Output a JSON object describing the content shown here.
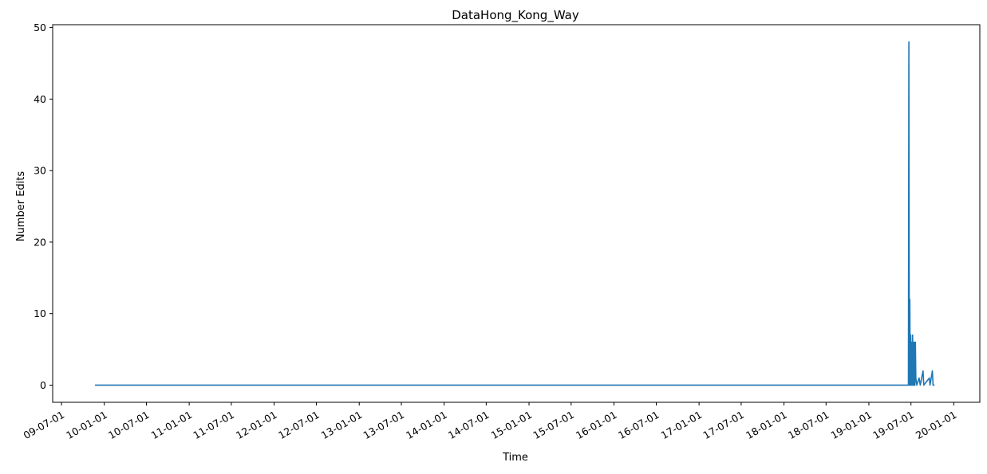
{
  "chart_data": {
    "type": "line",
    "title": "DataHong_Kong_Way",
    "xlabel": "Time",
    "ylabel": "Number Edits",
    "x_type": "date",
    "xlim": [
      "2009-05-24",
      "2020-04-22"
    ],
    "ylim": [
      -2.4,
      50.4
    ],
    "y_ticks": [
      0,
      10,
      20,
      30,
      40,
      50
    ],
    "x_ticks": [
      {
        "date": "2009-07-01",
        "label": "09-07-01"
      },
      {
        "date": "2010-01-01",
        "label": "10-01-01"
      },
      {
        "date": "2010-07-01",
        "label": "10-07-01"
      },
      {
        "date": "2011-01-01",
        "label": "11-01-01"
      },
      {
        "date": "2011-07-01",
        "label": "11-07-01"
      },
      {
        "date": "2012-01-01",
        "label": "12-01-01"
      },
      {
        "date": "2012-07-01",
        "label": "12-07-01"
      },
      {
        "date": "2013-01-01",
        "label": "13-01-01"
      },
      {
        "date": "2013-07-01",
        "label": "13-07-01"
      },
      {
        "date": "2014-01-01",
        "label": "14-01-01"
      },
      {
        "date": "2014-07-01",
        "label": "14-07-01"
      },
      {
        "date": "2015-01-01",
        "label": "15-01-01"
      },
      {
        "date": "2015-07-01",
        "label": "15-07-01"
      },
      {
        "date": "2016-01-01",
        "label": "16-01-01"
      },
      {
        "date": "2016-07-01",
        "label": "16-07-01"
      },
      {
        "date": "2017-01-01",
        "label": "17-01-01"
      },
      {
        "date": "2017-07-01",
        "label": "17-07-01"
      },
      {
        "date": "2018-01-01",
        "label": "18-01-01"
      },
      {
        "date": "2018-07-01",
        "label": "18-07-01"
      },
      {
        "date": "2019-01-01",
        "label": "19-01-01"
      },
      {
        "date": "2019-07-01",
        "label": "19-07-01"
      },
      {
        "date": "2020-01-01",
        "label": "20-01-01"
      }
    ],
    "grid": false,
    "series": [
      {
        "color": "#1f77b4",
        "points": [
          {
            "x": "2009-11-22",
            "y": 0
          },
          {
            "x": "2019-06-20",
            "y": 0
          },
          {
            "x": "2019-06-22",
            "y": 48
          },
          {
            "x": "2019-06-24",
            "y": 0
          },
          {
            "x": "2019-06-26",
            "y": 12
          },
          {
            "x": "2019-06-28",
            "y": 0
          },
          {
            "x": "2019-06-30",
            "y": 7
          },
          {
            "x": "2019-07-02",
            "y": 0
          },
          {
            "x": "2019-07-04",
            "y": 6
          },
          {
            "x": "2019-07-06",
            "y": 0
          },
          {
            "x": "2019-07-08",
            "y": 7
          },
          {
            "x": "2019-07-10",
            "y": 0
          },
          {
            "x": "2019-07-12",
            "y": 6
          },
          {
            "x": "2019-07-14",
            "y": 0
          },
          {
            "x": "2019-07-16",
            "y": 6
          },
          {
            "x": "2019-07-18",
            "y": 0
          },
          {
            "x": "2019-07-20",
            "y": 6
          },
          {
            "x": "2019-07-22",
            "y": 1
          },
          {
            "x": "2019-07-26",
            "y": 0
          },
          {
            "x": "2019-08-05",
            "y": 1
          },
          {
            "x": "2019-08-10",
            "y": 0
          },
          {
            "x": "2019-08-22",
            "y": 2
          },
          {
            "x": "2019-08-25",
            "y": 0
          },
          {
            "x": "2019-09-18",
            "y": 1
          },
          {
            "x": "2019-09-21",
            "y": 0
          },
          {
            "x": "2019-10-01",
            "y": 2
          },
          {
            "x": "2019-10-04",
            "y": 0
          },
          {
            "x": "2019-10-10",
            "y": 0
          }
        ]
      }
    ]
  }
}
